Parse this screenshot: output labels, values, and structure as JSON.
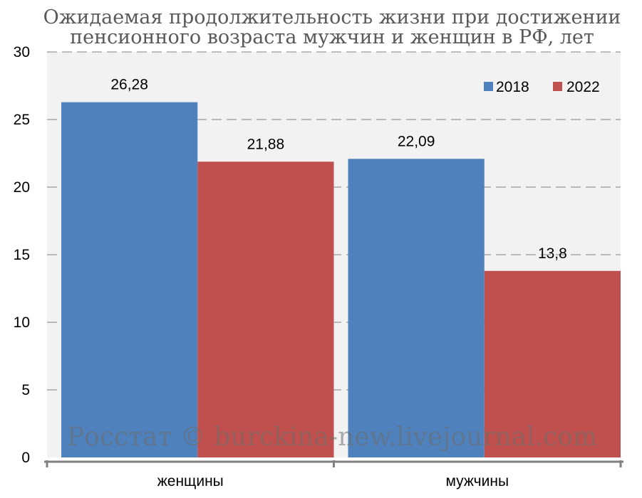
{
  "chart_data": {
    "type": "bar",
    "title_lines": [
      "Ожидаемая продолжительность жизни при достижении",
      "пенсионного возраста мужчин и женщин в РФ, лет"
    ],
    "categories": [
      "женщины",
      "мужчины"
    ],
    "series": [
      {
        "name": "2018",
        "values": [
          26.28,
          22.09
        ],
        "labels": [
          "26,28",
          "22,09"
        ],
        "color": "#4f81bd"
      },
      {
        "name": "2022",
        "values": [
          21.88,
          13.8
        ],
        "labels": [
          "21,88",
          "13,8"
        ],
        "color": "#c0504d"
      }
    ],
    "ylim": [
      0,
      30
    ],
    "yticks": [
      0,
      5,
      10,
      15,
      20,
      25,
      30
    ],
    "grid": true,
    "legend": "top-right",
    "plot_background": "#f2f2f2",
    "watermark": "Росстат © burckina-new.livejournal.com"
  }
}
